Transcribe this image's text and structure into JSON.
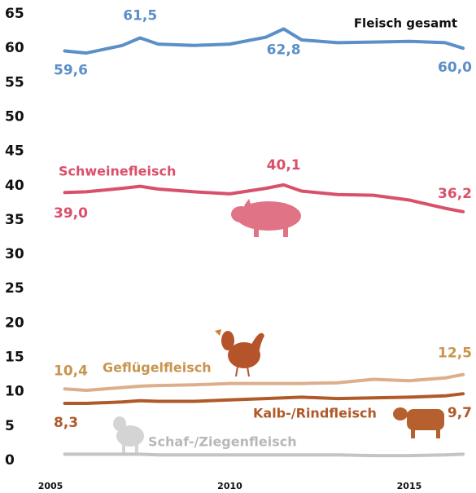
{
  "chart_data": {
    "type": "line",
    "x": [
      2005.4,
      2006,
      2007,
      2007.5,
      2008,
      2009,
      2010,
      2011,
      2011.5,
      2012,
      2013,
      2014,
      2015,
      2016,
      2016.5
    ],
    "series": [
      {
        "name": "Fleisch gesamt",
        "color": "#5b8fc7",
        "values": [
          59.6,
          59.3,
          60.4,
          61.5,
          60.6,
          60.4,
          60.6,
          61.6,
          62.8,
          61.2,
          60.8,
          60.9,
          61.0,
          60.8,
          60.0
        ],
        "value_labels": [
          "59,6",
          null,
          null,
          "61,5",
          null,
          null,
          null,
          null,
          "62,8",
          null,
          null,
          null,
          null,
          null,
          "60,0"
        ]
      },
      {
        "name": "Schweinefleisch",
        "color": "#d9506a",
        "values": [
          39.0,
          39.1,
          39.6,
          39.9,
          39.5,
          39.1,
          38.8,
          39.6,
          40.1,
          39.2,
          38.7,
          38.6,
          37.9,
          36.7,
          36.2
        ],
        "value_labels": [
          "39,0",
          null,
          null,
          null,
          null,
          null,
          null,
          null,
          "40,1",
          null,
          null,
          null,
          null,
          null,
          "36,2"
        ]
      },
      {
        "name": "Geflügelfleisch",
        "color": "#dcae8c",
        "values": [
          10.4,
          10.2,
          10.6,
          10.8,
          10.9,
          11.0,
          11.2,
          11.2,
          11.2,
          11.2,
          11.3,
          11.8,
          11.6,
          12.0,
          12.5
        ],
        "value_labels": [
          "10,4",
          null,
          null,
          null,
          null,
          null,
          null,
          null,
          null,
          null,
          null,
          null,
          null,
          null,
          "12,5"
        ]
      },
      {
        "name": "Kalb-/Rindfleisch",
        "color": "#b05a2a",
        "values": [
          8.3,
          8.3,
          8.5,
          8.7,
          8.6,
          8.6,
          8.8,
          9.0,
          9.1,
          9.2,
          9.0,
          9.1,
          9.2,
          9.4,
          9.7
        ],
        "value_labels": [
          "8,3",
          null,
          null,
          null,
          null,
          null,
          null,
          null,
          null,
          null,
          null,
          null,
          null,
          null,
          "9,7"
        ]
      },
      {
        "name": "Schaf-/Ziegenfleisch",
        "color": "#c4c4c4",
        "values": [
          0.9,
          0.9,
          0.9,
          0.9,
          0.8,
          0.8,
          0.8,
          0.8,
          0.8,
          0.8,
          0.8,
          0.7,
          0.7,
          0.8,
          0.9
        ]
      }
    ],
    "xlim": [
      2005,
      2016.86
    ],
    "xticks": [
      2005,
      2010,
      2015
    ],
    "ylim": [
      0,
      65
    ],
    "yticks": [
      0,
      5,
      10,
      15,
      20,
      25,
      30,
      35,
      40,
      45,
      50,
      55,
      60,
      65
    ]
  }
}
